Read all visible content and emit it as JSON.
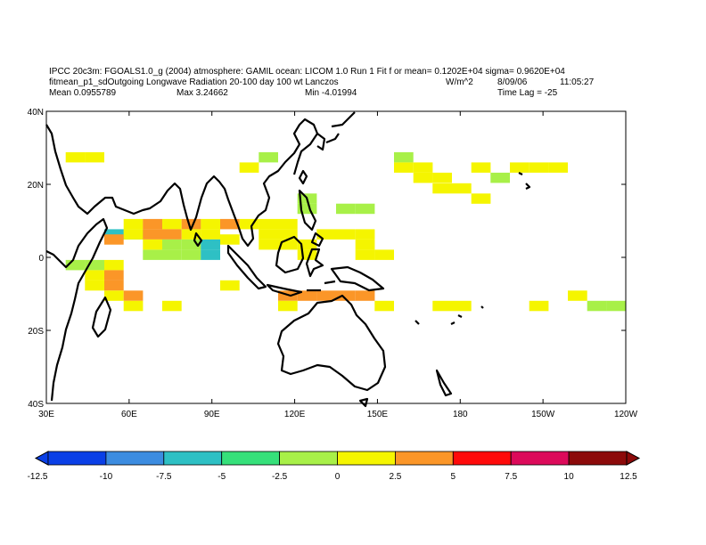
{
  "header": {
    "line1": "IPCC 20c3m: FGOALS1.0_g (2004) atmosphere: GAMIL ocean: LICOM 1.0 Run 1 Fit f or mean= 0.1202E+04 sigma= 0.9620E+04",
    "title": "fitmean_p1_sdOutgoing Longwave Radiation 20-100 day 100 wt Lanczos",
    "units": "W/m^2",
    "date": "8/09/06",
    "time": "11:05:27",
    "mean": "Mean 0.0955789",
    "max": "Max 3.24662",
    "min": "Min -4.01994",
    "lag": "Time Lag = -25"
  },
  "map": {
    "lon_labels": [
      "30E",
      "60E",
      "90E",
      "120E",
      "150E",
      "180",
      "150W",
      "120W"
    ],
    "lat_labels": [
      "40N",
      "20N",
      "0",
      "20S",
      "40S"
    ],
    "lon_range": [
      30,
      240
    ],
    "lat_range": [
      -40,
      40
    ],
    "grid_step_deg": 2.8
  },
  "colorbar": {
    "labels": [
      "-12.5",
      "-10",
      "-7.5",
      "-5",
      "-2.5",
      "0",
      "2.5",
      "5",
      "7.5",
      "10",
      "12.5"
    ],
    "colors": [
      "#0a3fe6",
      "#3c8ce0",
      "#2ec0c4",
      "#36e07a",
      "#a8f048",
      "#f5f500",
      "#fb9628",
      "#ff0a0a",
      "#dc0a5a",
      "#8c0a0a"
    ]
  },
  "chart_data": {
    "type": "heatmap",
    "note_units": "W/m^2",
    "cells": [
      [
        1,
        27.4,
        2
      ],
      [
        2,
        27.4,
        2
      ],
      [
        10,
        24.6,
        2
      ],
      [
        18,
        27.4,
        1
      ],
      [
        11,
        27.4,
        1
      ],
      [
        18,
        24.6,
        2
      ],
      [
        19,
        24.6,
        2
      ],
      [
        19,
        21.8,
        2
      ],
      [
        20,
        21.8,
        2
      ],
      [
        20,
        18.9,
        2
      ],
      [
        21,
        18.9,
        2
      ],
      [
        22,
        24.6,
        2
      ],
      [
        24,
        24.6,
        2
      ],
      [
        25,
        24.6,
        2
      ],
      [
        26,
        24.6,
        2
      ],
      [
        23,
        21.8,
        1
      ],
      [
        22,
        16.1,
        2
      ],
      [
        13,
        16.1,
        1
      ],
      [
        13,
        13.3,
        1
      ],
      [
        15,
        13.3,
        1
      ],
      [
        16,
        13.3,
        1
      ],
      [
        4,
        6.3,
        0
      ],
      [
        3,
        6.3,
        -1
      ],
      [
        4,
        9.1,
        2
      ],
      [
        5,
        9.1,
        3
      ],
      [
        6,
        9.1,
        2
      ],
      [
        7,
        9.1,
        3
      ],
      [
        8,
        9.1,
        2
      ],
      [
        9,
        9.1,
        3
      ],
      [
        10,
        9.1,
        2
      ],
      [
        11,
        9.1,
        2
      ],
      [
        12,
        9.1,
        2
      ],
      [
        4,
        6.3,
        2
      ],
      [
        5,
        6.3,
        3
      ],
      [
        6,
        6.3,
        3
      ],
      [
        7,
        6.3,
        2
      ],
      [
        8,
        6.3,
        2
      ],
      [
        11,
        6.3,
        2
      ],
      [
        12,
        6.3,
        2
      ],
      [
        3,
        4.9,
        3
      ],
      [
        6,
        3.5,
        1
      ],
      [
        7,
        3.5,
        1
      ],
      [
        8,
        3.5,
        -1
      ],
      [
        5,
        0.7,
        1
      ],
      [
        6,
        0.7,
        1
      ],
      [
        7,
        0.7,
        1
      ],
      [
        8,
        0.7,
        -1
      ],
      [
        5,
        3.5,
        2
      ],
      [
        9,
        4.9,
        2
      ],
      [
        11,
        3.5,
        2
      ],
      [
        12,
        3.5,
        2
      ],
      [
        13,
        3.5,
        2
      ],
      [
        14,
        6.3,
        2
      ],
      [
        15,
        6.3,
        2
      ],
      [
        16,
        6.3,
        2
      ],
      [
        16,
        3.5,
        2
      ],
      [
        16,
        0.7,
        2
      ],
      [
        17,
        0.7,
        2
      ],
      [
        13,
        0.7,
        2
      ],
      [
        1,
        -2.1,
        1
      ],
      [
        2,
        -2.1,
        1
      ],
      [
        3,
        -2.1,
        2
      ],
      [
        2,
        -4.9,
        2
      ],
      [
        3,
        -4.9,
        3
      ],
      [
        2,
        -7.7,
        2
      ],
      [
        3,
        -7.7,
        3
      ],
      [
        3,
        -10.5,
        2
      ],
      [
        4,
        -10.5,
        3
      ],
      [
        4,
        -13.3,
        2
      ],
      [
        6,
        -13.3,
        2
      ],
      [
        9,
        -7.7,
        2
      ],
      [
        14,
        -10.5,
        3
      ],
      [
        15,
        -10.5,
        3
      ],
      [
        16,
        -10.5,
        3
      ],
      [
        12,
        -10.5,
        3
      ],
      [
        13,
        -10.5,
        3
      ],
      [
        12,
        -13.3,
        2
      ],
      [
        17,
        -13.3,
        2
      ],
      [
        20,
        -13.3,
        2
      ],
      [
        21,
        -13.3,
        2
      ],
      [
        25,
        -13.3,
        2
      ],
      [
        28,
        -13.3,
        1
      ],
      [
        29,
        -13.3,
        1
      ],
      [
        27,
        -10.5,
        2
      ]
    ],
    "range": [
      -12.5,
      12.5
    ]
  }
}
